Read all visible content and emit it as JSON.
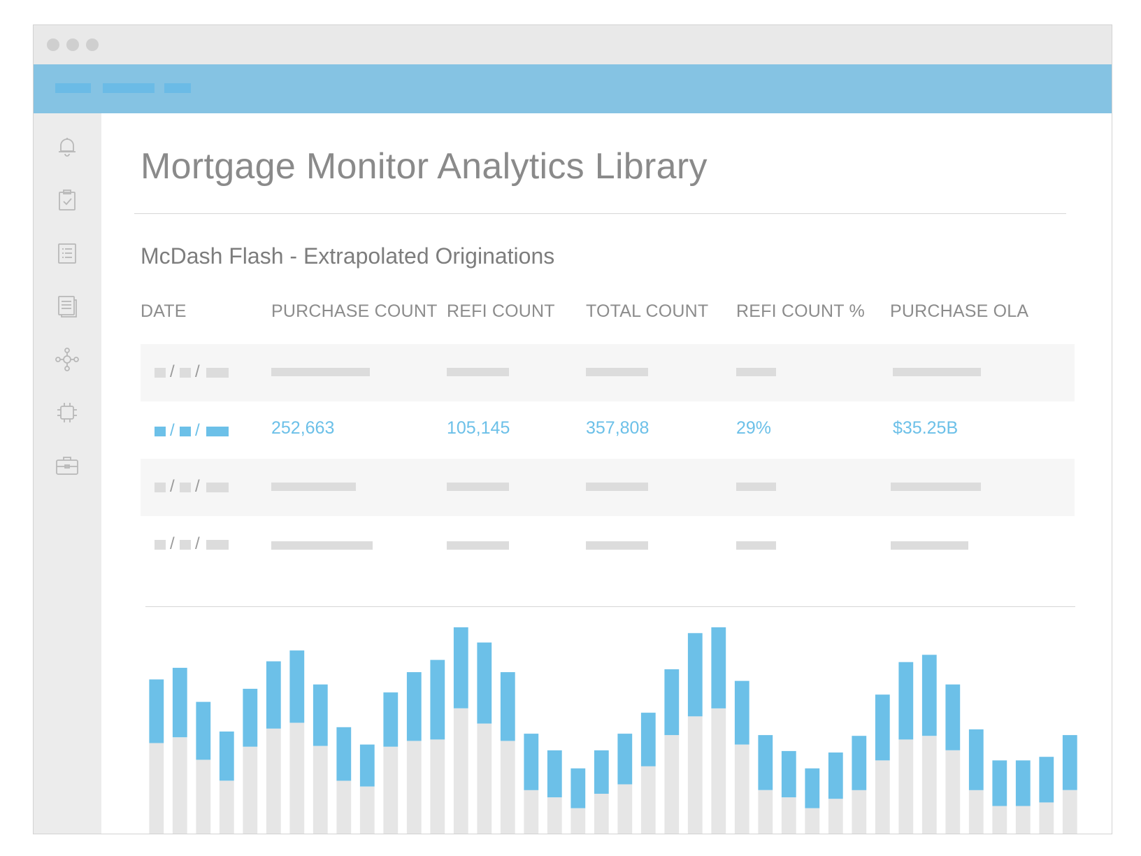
{
  "page": {
    "title": "Mortgage Monitor Analytics Library",
    "section_title": "McDash Flash - Extrapolated Originations"
  },
  "sidebar": {
    "icons": [
      "bell-icon",
      "clipboard-icon",
      "list-icon",
      "document-icon",
      "network-icon",
      "chip-icon",
      "briefcase-icon"
    ]
  },
  "table": {
    "columns": [
      "DATE",
      "PURCHASE COUNT",
      "REFI COUNT",
      "TOTAL COUNT",
      "REFI COUNT %",
      "PURCHASE OLA"
    ],
    "highlighted_row": {
      "date_separator": "/",
      "purchase_count": "252,663",
      "refi_count": "105,145",
      "total_count": "357,808",
      "refi_count_pct": "29%",
      "purchase_ola": "$35.25B"
    },
    "placeholder_separator": "/"
  },
  "colors": {
    "accent_blue": "#6cc0e8",
    "appbar_blue": "#85c3e3",
    "bar_gray": "#e6e6e6",
    "placeholder_gray": "#dcdcdc"
  },
  "chart_data": {
    "type": "bar",
    "stacked": true,
    "ylim": [
      0,
      290
    ],
    "series": [
      {
        "values": [
          130,
          138,
          107,
          78,
          125,
          150,
          158,
          126,
          78,
          70,
          125,
          133,
          135,
          178,
          157,
          133,
          65,
          55,
          40,
          60,
          73,
          98,
          141,
          167,
          178,
          128,
          65,
          55,
          40,
          53,
          65,
          106,
          135,
          140,
          120,
          65,
          43,
          43,
          48,
          65
        ]
      },
      {
        "values": [
          88,
          96,
          80,
          68,
          80,
          93,
          100,
          85,
          74,
          58,
          75,
          95,
          110,
          117,
          112,
          95,
          78,
          65,
          55,
          60,
          70,
          74,
          91,
          115,
          119,
          88,
          76,
          64,
          55,
          64,
          75,
          91,
          107,
          112,
          91,
          84,
          63,
          63,
          63,
          76
        ]
      }
    ],
    "grid": false
  }
}
